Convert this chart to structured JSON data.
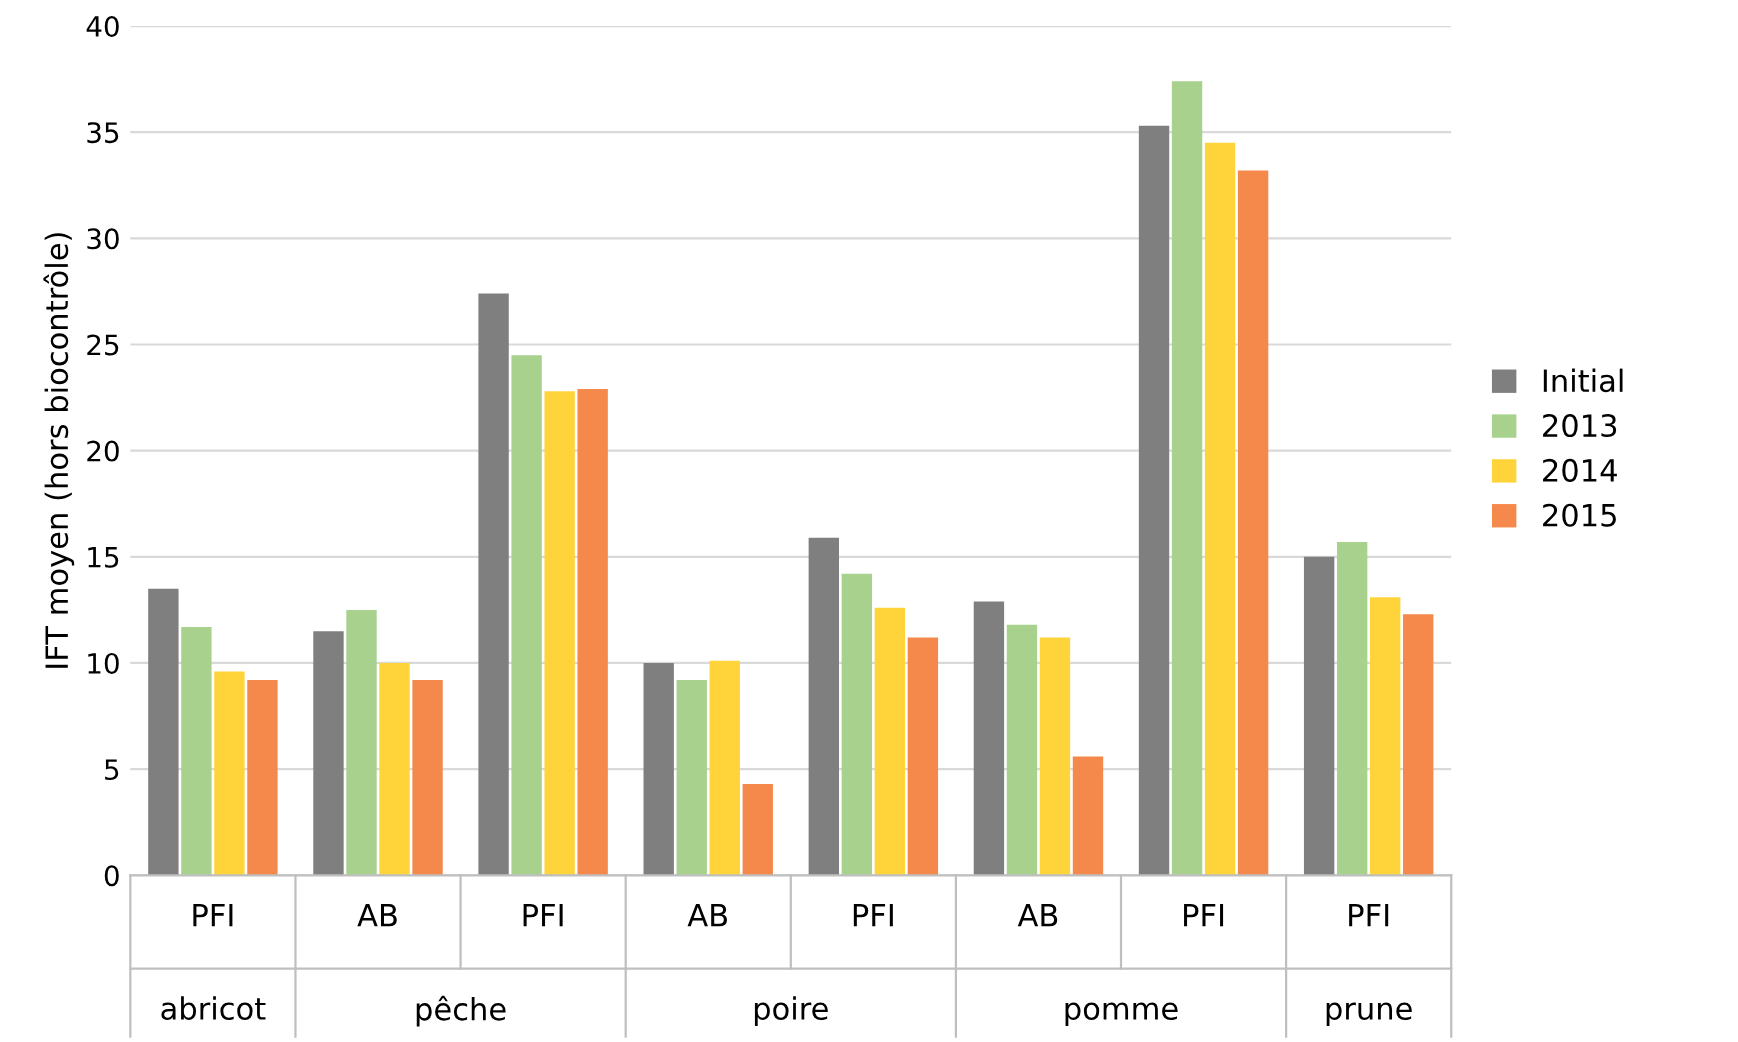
{
  "chart_data": {
    "type": "bar",
    "ylabel": "IFT moyen (hors biocontrôle)",
    "categories": [
      "PFI",
      "AB",
      "PFI",
      "AB",
      "PFI",
      "AB",
      "PFI",
      "PFI"
    ],
    "annotations": [
      "abricot",
      "pêche",
      "poire",
      "pomme",
      "prune"
    ],
    "series": [
      {
        "name": "Initial",
        "color": "#7f7f7f",
        "values": [
          13.5,
          11.5,
          27.4,
          10.0,
          15.9,
          12.9,
          35.3,
          15.0
        ]
      },
      {
        "name": "2013",
        "color": "#a9d18e",
        "values": [
          11.7,
          12.5,
          24.5,
          9.2,
          14.2,
          11.8,
          37.4,
          15.7
        ]
      },
      {
        "name": "2014",
        "color": "#ffd43b",
        "values": [
          9.6,
          10.0,
          22.8,
          10.1,
          12.6,
          11.2,
          34.5,
          13.1
        ]
      },
      {
        "name": "2015",
        "color": "#f4894b",
        "values": [
          9.2,
          9.2,
          22.9,
          4.3,
          11.2,
          5.6,
          33.2,
          12.3
        ]
      }
    ],
    "ylim": [
      0,
      40
    ],
    "yticks": [
      0,
      5,
      10,
      15,
      20,
      25,
      30,
      35,
      40
    ],
    "grid": "y",
    "legend": "right"
  }
}
